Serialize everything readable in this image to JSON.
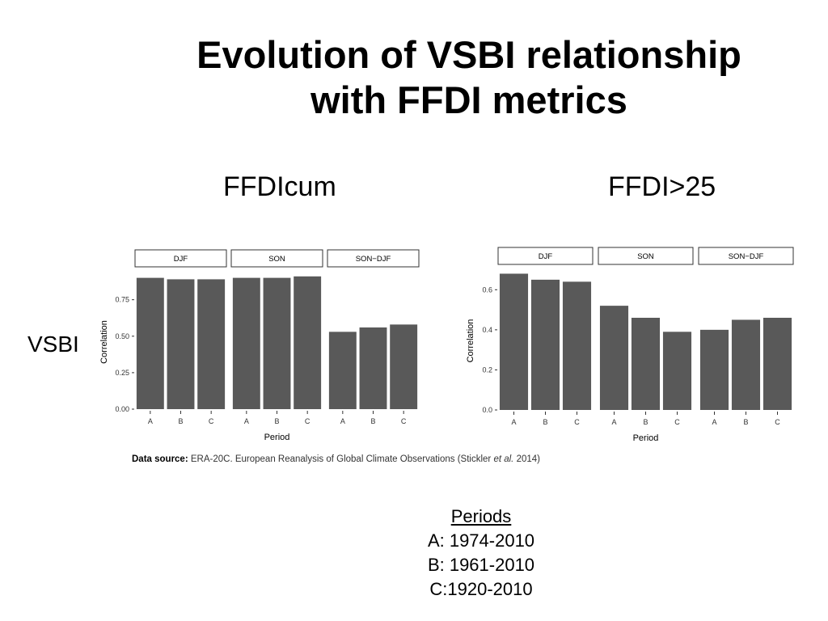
{
  "title": {
    "line1": "Evolution of VSBI relationship",
    "line2": "with FFDI metrics"
  },
  "row_label": "VSBI",
  "source": {
    "label": "Data source:",
    "text_before": "ERA-20C. European Reanalysis of Global Climate Observations (Stickler",
    "italic": "et al.",
    "text_after": "2014)"
  },
  "periods": {
    "title": "Periods",
    "items": [
      "A: 1974-2010",
      "B: 1961-2010",
      "C:1920-2010"
    ]
  },
  "colors": {
    "bar": "#595959",
    "strip_border": "#333333",
    "text": "#000000"
  },
  "chart_data": [
    {
      "type": "bar",
      "heading": "FFDIcum",
      "panels": [
        "DJF",
        "SON",
        "SON−DJF"
      ],
      "categories": [
        "A",
        "B",
        "C"
      ],
      "values": [
        [
          0.9,
          0.89,
          0.89
        ],
        [
          0.9,
          0.9,
          0.91
        ],
        [
          0.53,
          0.56,
          0.58
        ]
      ],
      "xlabel": "Period",
      "ylabel": "Correlation",
      "ylim": [
        0,
        0.92
      ],
      "yticks": [
        0,
        0.25,
        0.5,
        0.75
      ],
      "ytick_labels": [
        "0.00",
        "0.25",
        "0.50",
        "0.75"
      ],
      "grid": false
    },
    {
      "type": "bar",
      "heading": "FFDI>25",
      "panels": [
        "DJF",
        "SON",
        "SON−DJF"
      ],
      "categories": [
        "A",
        "B",
        "C"
      ],
      "values": [
        [
          0.68,
          0.65,
          0.64
        ],
        [
          0.52,
          0.46,
          0.39
        ],
        [
          0.4,
          0.45,
          0.46
        ]
      ],
      "xlabel": "Period",
      "ylabel": "Correlation",
      "ylim": [
        0,
        0.69
      ],
      "yticks": [
        0,
        0.2,
        0.4,
        0.6
      ],
      "ytick_labels": [
        "0.0",
        "0.2",
        "0.4",
        "0.6"
      ],
      "grid": false
    }
  ]
}
